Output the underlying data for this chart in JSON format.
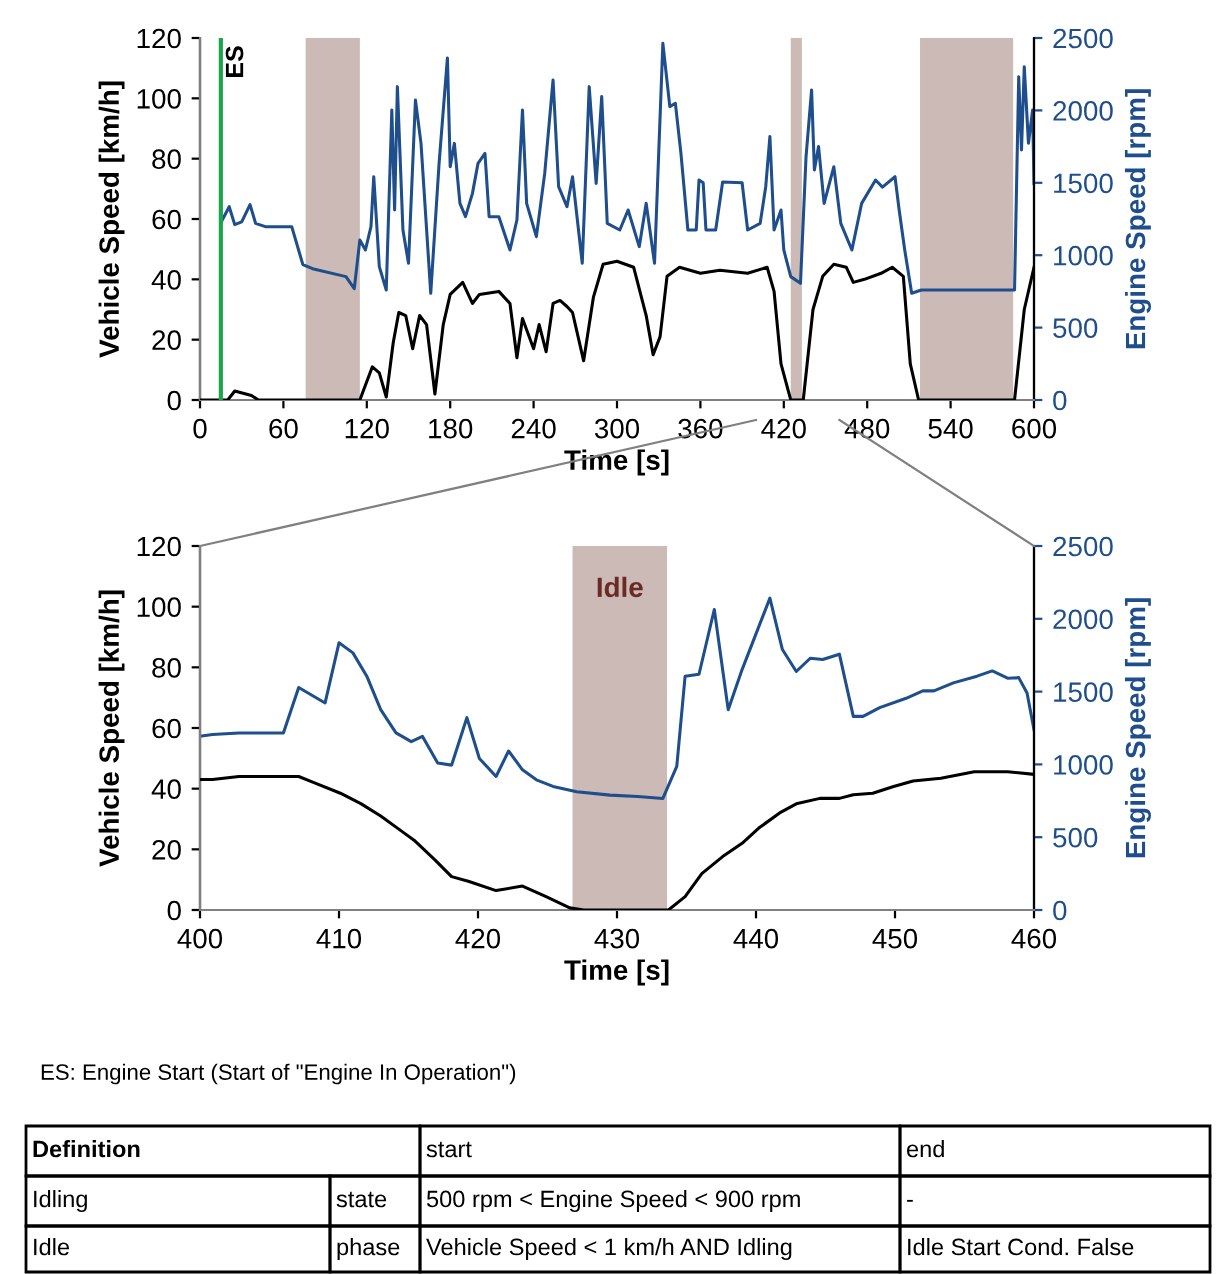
{
  "chart_data": [
    {
      "type": "line",
      "xlabel": "Time [s]",
      "ylabel": "Vehicle Speed [km/h]",
      "y2label": "Engine Speed [rpm]",
      "xlim": [
        0,
        600
      ],
      "xticks": [
        0,
        60,
        120,
        180,
        240,
        300,
        360,
        420,
        480,
        540,
        600
      ],
      "ylim": [
        0,
        120
      ],
      "yticks": [
        0,
        20,
        40,
        60,
        80,
        100,
        120
      ],
      "y2lim": [
        0,
        2500
      ],
      "y2ticks": [
        0,
        500,
        1000,
        1500,
        2000,
        2500
      ],
      "grid": false,
      "bands": [
        {
          "axis": "x",
          "from": 76,
          "to": 115,
          "color": "#cbbab6"
        },
        {
          "axis": "x",
          "from": 425,
          "to": 433,
          "color": "#cbbab6"
        },
        {
          "axis": "x",
          "from": 518,
          "to": 585,
          "color": "#cbbab6"
        }
      ],
      "ref_lines": [
        {
          "axis": "x",
          "value": 15,
          "label": "ES",
          "color": "#1aa64a"
        }
      ],
      "series": [
        {
          "color": "#000000",
          "x": [
            0,
            20,
            25,
            37,
            42,
            115,
            124,
            129,
            134,
            139,
            143,
            148,
            153,
            158,
            163,
            169,
            175,
            180,
            189,
            196,
            201,
            215,
            223,
            228,
            232,
            240,
            244,
            249,
            254,
            259,
            264,
            268,
            276,
            283,
            290,
            300,
            312,
            321,
            326,
            331,
            336,
            345,
            360,
            374,
            394,
            408,
            413,
            418,
            425,
            434,
            441,
            448,
            456,
            465,
            470,
            478,
            490,
            498,
            506,
            511,
            517,
            586,
            593,
            600
          ],
          "values": [
            0,
            0,
            3,
            1.5,
            0,
            0,
            11,
            9,
            1,
            19,
            29,
            28,
            17,
            28,
            25,
            2,
            25,
            35,
            39,
            32,
            35,
            36,
            32,
            14,
            27,
            17,
            25,
            16,
            32,
            33,
            31,
            29,
            13,
            34,
            45,
            46,
            44,
            28,
            15,
            21,
            41,
            44,
            42,
            43,
            42,
            44,
            36,
            12,
            0,
            0,
            30,
            41,
            45,
            44,
            39,
            40,
            42,
            44,
            41,
            12,
            0,
            0,
            30,
            44
          ]
        },
        {
          "color": "#1f4e8c",
          "axis": "y2",
          "x": [
            15,
            16,
            21,
            25,
            30,
            36,
            40,
            47,
            66,
            74,
            81,
            105,
            111,
            115,
            119,
            123,
            125,
            129,
            134,
            138,
            140,
            142,
            146,
            150,
            155,
            159,
            166,
            172,
            178,
            180,
            183,
            187,
            191,
            196,
            200,
            205,
            208,
            215,
            223,
            228,
            232,
            235,
            242,
            248,
            254,
            258,
            264,
            268,
            275,
            280,
            285,
            289,
            293,
            302,
            308,
            316,
            321,
            327,
            333,
            338,
            342,
            346,
            351,
            357,
            359,
            362,
            364,
            371,
            376,
            390,
            394,
            403,
            407,
            410,
            413,
            418,
            420,
            425,
            432,
            436,
            440,
            442,
            445,
            449,
            456,
            461,
            469,
            476,
            486,
            491,
            500,
            503,
            507,
            512,
            519,
            586,
            589,
            591,
            593,
            596,
            599,
            600
          ],
          "values": [
            1220,
            1243,
            1335,
            1211,
            1230,
            1349,
            1220,
            1197,
            1197,
            935,
            907,
            852,
            769,
            1105,
            1036,
            1197,
            1542,
            921,
            760,
            2003,
            1312,
            2164,
            1174,
            944,
            2072,
            1772,
            737,
            1634,
            2362,
            1611,
            1772,
            1358,
            1266,
            1427,
            1634,
            1703,
            1266,
            1266,
            1036,
            1243,
            2003,
            1358,
            1128,
            1565,
            2210,
            1473,
            1335,
            1542,
            944,
            2164,
            1496,
            2095,
            1220,
            1174,
            1312,
            1059,
            1358,
            944,
            2463,
            2026,
            2049,
            1703,
            1174,
            1174,
            1519,
            1500,
            1174,
            1174,
            1506,
            1500,
            1174,
            1220,
            1473,
            1819,
            1174,
            1312,
            1036,
            852,
            806,
            1680,
            2141,
            1588,
            1750,
            1358,
            1611,
            1220,
            1036,
            1358,
            1519,
            1470,
            1542,
            1312,
            1036,
            737,
            760,
            760,
            2233,
            1727,
            2302,
            1773,
            2003,
            1496
          ]
        }
      ]
    },
    {
      "type": "line",
      "xlabel": "Time [s]",
      "ylabel": "Vehicle Speed [km/h]",
      "y2label": "Engine Speed [rpm]",
      "xlim": [
        400,
        460
      ],
      "xticks": [
        400,
        410,
        420,
        430,
        440,
        450,
        460
      ],
      "ylim": [
        0,
        120
      ],
      "yticks": [
        0,
        20,
        40,
        60,
        80,
        100,
        120
      ],
      "y2lim": [
        0,
        2500
      ],
      "y2ticks": [
        0,
        500,
        1000,
        1500,
        2000,
        2500
      ],
      "grid": false,
      "bands": [
        {
          "axis": "x",
          "from": 426.8,
          "to": 433.6,
          "label": "Idle",
          "color": "#cbbab6"
        }
      ],
      "series": [
        {
          "color": "#000000",
          "x": [
            400,
            400.9,
            402.8,
            407.1,
            408.2,
            410.1,
            411.6,
            413,
            414.5,
            415.4,
            416.9,
            418.1,
            419.3,
            421.3,
            423.2,
            424.9,
            426.6,
            427.6,
            433.7,
            434.9,
            436.1,
            437.6,
            439,
            440.2,
            441.7,
            442.9,
            444.6,
            446,
            447,
            448.4,
            449.9,
            451.3,
            453.3,
            455.7,
            458.1,
            460
          ],
          "values": [
            43,
            43,
            44,
            44,
            42,
            38.5,
            35,
            31,
            26,
            23,
            16.5,
            11,
            9.5,
            6.4,
            7.9,
            4.4,
            0.7,
            0,
            0,
            4.4,
            12,
            17.6,
            22,
            27,
            32,
            35,
            36.8,
            36.8,
            38,
            38.5,
            40.7,
            42.5,
            43.4,
            45.6,
            45.6,
            44.7
          ]
        },
        {
          "color": "#1f4e8c",
          "axis": "y2",
          "x": [
            400,
            400.9,
            402.8,
            406,
            407.1,
            409,
            410,
            411,
            412,
            413,
            414.1,
            415.2,
            416,
            417.1,
            418.1,
            419.2,
            420.1,
            421.3,
            422.2,
            423.2,
            424.2,
            425.4,
            427.1,
            429.5,
            431.5,
            433.3,
            434.3,
            434.9,
            435.9,
            437,
            438,
            439,
            441,
            441.9,
            442.9,
            443.9,
            444.8,
            446,
            447,
            447.7,
            448.9,
            450.8,
            452,
            452.8,
            454.2,
            455.9,
            457,
            458.1,
            458.9,
            459.5,
            460
          ],
          "values": [
            1193,
            1205,
            1216,
            1216,
            1528,
            1422,
            1835,
            1766,
            1606,
            1376,
            1216,
            1156,
            1193,
            1009,
            995,
            1321,
            1041,
            917,
            1092,
            963,
            894,
            849,
            812,
            789,
            780,
            766,
            986,
            1606,
            1619,
            2064,
            1376,
            1651,
            2142,
            1789,
            1638,
            1729,
            1720,
            1757,
            1330,
            1330,
            1390,
            1454,
            1505,
            1505,
            1560,
            1606,
            1642,
            1592,
            1596,
            1491,
            1239
          ]
        }
      ]
    },
    {
      "type": "other",
      "annotations": [
        "ES: Engine Start (Start of \"Engine In Operation\")",
        "Definition",
        "start",
        "end",
        "Idling",
        "state",
        "500 rpm < Engine Speed < 900 rpm",
        "-",
        "Idle",
        "phase",
        "Vehicle Speed < 1 km/h AND Idling",
        "Idle Start Cond. False"
      ]
    }
  ]
}
